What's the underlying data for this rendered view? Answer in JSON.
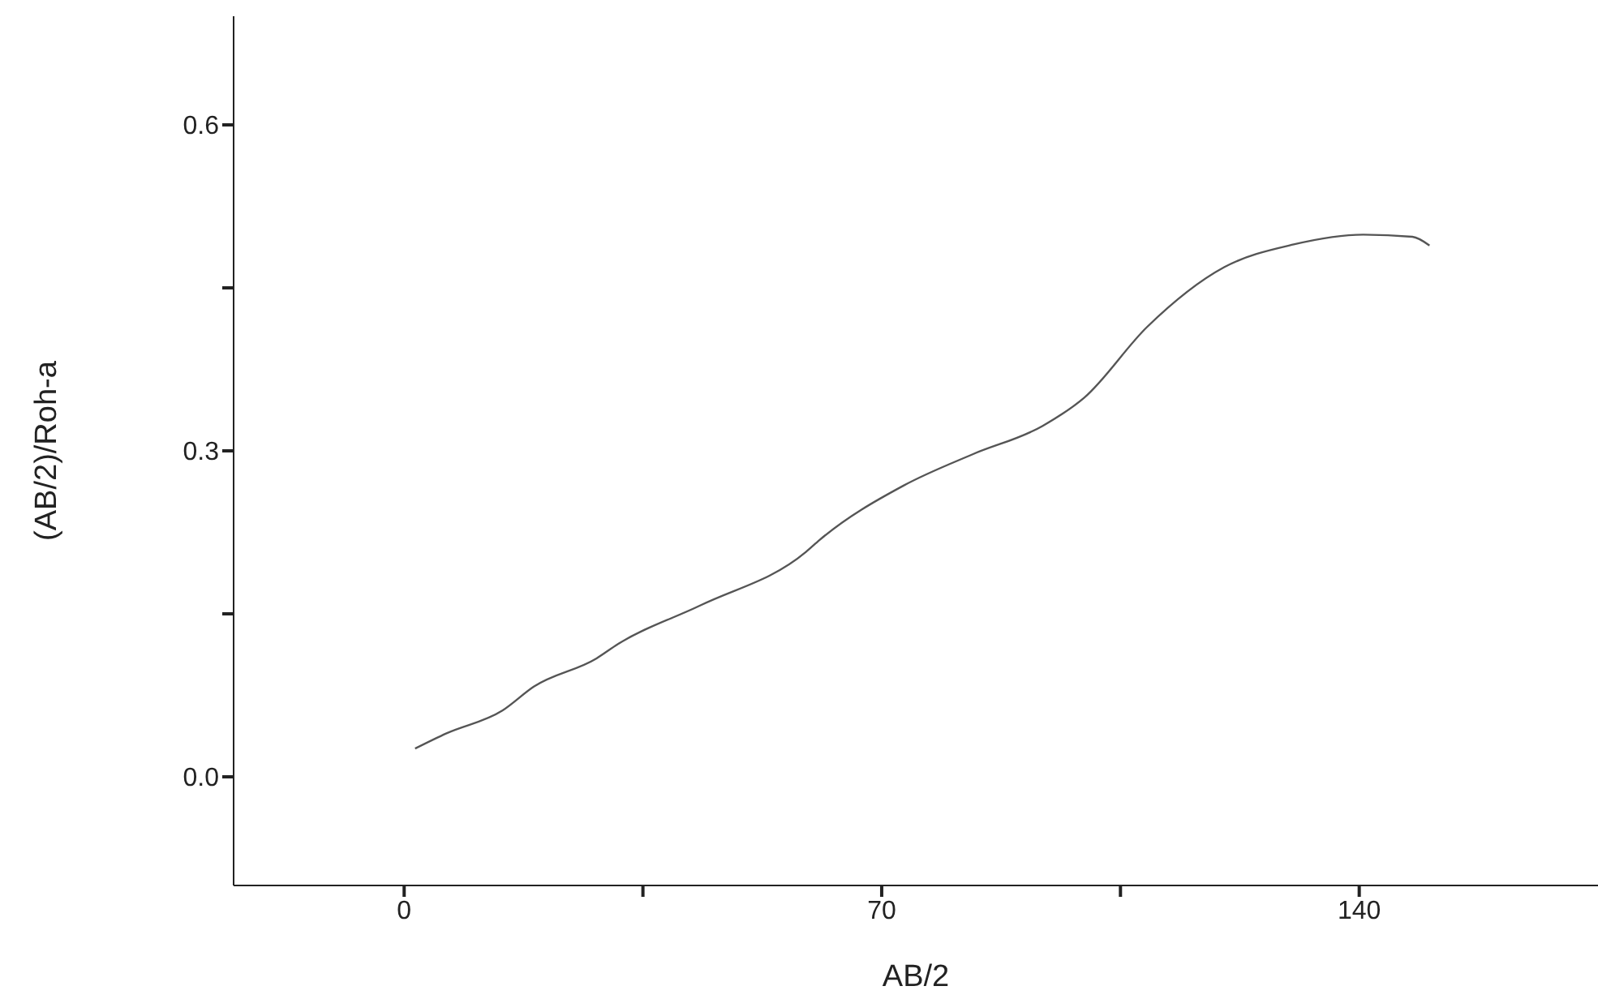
{
  "chart_data": {
    "type": "line",
    "xlabel": "AB/2",
    "ylabel": "(AB/2)/Roh-a",
    "xlim": [
      -25,
      175
    ],
    "xticks": [
      0,
      {
        "value": 35,
        "label": null
      },
      70,
      {
        "value": 105,
        "label": null
      },
      140
    ],
    "ylim": [
      -0.1,
      0.7
    ],
    "yticks": [
      {
        "value": 0,
        "label": "0.0"
      },
      {
        "value": 0.15,
        "label": null
      },
      0.3,
      {
        "value": 0.45,
        "label": null
      },
      0.6
    ],
    "grid": false,
    "marker": "none",
    "line_style": "solid",
    "series": [
      {
        "color": "#555555",
        "x": [
          1.6,
          6.2,
          14.4,
          19.0,
          28.2,
          31.3,
          43.5,
          58.9,
          60.9,
          73.2,
          83.4,
          93.6,
          99.7,
          108.9,
          120.2,
          130.4,
          140.6,
          147.8,
          150.3
        ],
        "values": [
          0.026,
          0.04,
          0.061,
          0.083,
          0.109,
          0.122,
          0.158,
          0.207,
          0.218,
          0.268,
          0.297,
          0.323,
          0.349,
          0.414,
          0.469,
          0.49,
          0.499,
          0.497,
          0.489
        ]
      }
    ]
  }
}
